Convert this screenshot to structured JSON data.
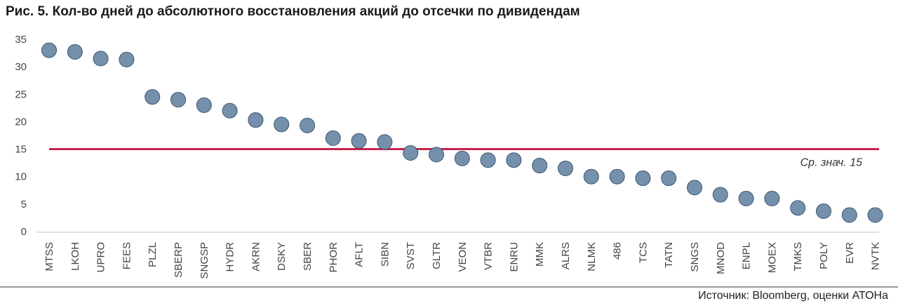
{
  "title": "Рис. 5. Кол-во дней до абсолютного восстановления акций до отсечки по дивидендам",
  "source": "Источник: Bloomberg, оценки АТОНа",
  "colors": {
    "point": "#7590aa",
    "point_stroke": "#3c5670",
    "average_line": "#c8234e",
    "baseline": "#bfbfbf",
    "bottom_rule": "#9a9a9a"
  },
  "chart_data": {
    "type": "scatter",
    "title": "Рис. 5. Кол-во дней до абсолютного восстановления акций до отсечки по дивидендам",
    "xlabel": "",
    "ylabel": "",
    "ylim": [
      0,
      35
    ],
    "yticks": [
      0,
      5,
      10,
      15,
      20,
      25,
      30,
      35
    ],
    "grid": false,
    "categories": [
      "MTSS",
      "LKOH",
      "UPRO",
      "FEES",
      "PLZL",
      "SBERP",
      "SNGSP",
      "HYDR",
      "AKRN",
      "DSKY",
      "SBER",
      "PHOR",
      "AFLT",
      "SIBN",
      "SVST",
      "GLTR",
      "VEON",
      "VTBR",
      "ENRU",
      "MMK",
      "ALRS",
      "NLMK",
      "486",
      "TCS",
      "TATN",
      "SNGS",
      "MNOD",
      "ENPL",
      "MOEX",
      "TMKS",
      "POLY",
      "EVR",
      "NVTK"
    ],
    "values": [
      33,
      32.7,
      31.5,
      31.3,
      24.5,
      24,
      23,
      22,
      20.3,
      19.5,
      19.3,
      17,
      16.5,
      16.3,
      14.3,
      14,
      13.3,
      13,
      13,
      12,
      11.5,
      10,
      10,
      9.7,
      9.7,
      8,
      6.7,
      6,
      6,
      4.3,
      3.7,
      3,
      3
    ],
    "average": {
      "value": 15,
      "label": "Ср. знач. 15"
    }
  }
}
